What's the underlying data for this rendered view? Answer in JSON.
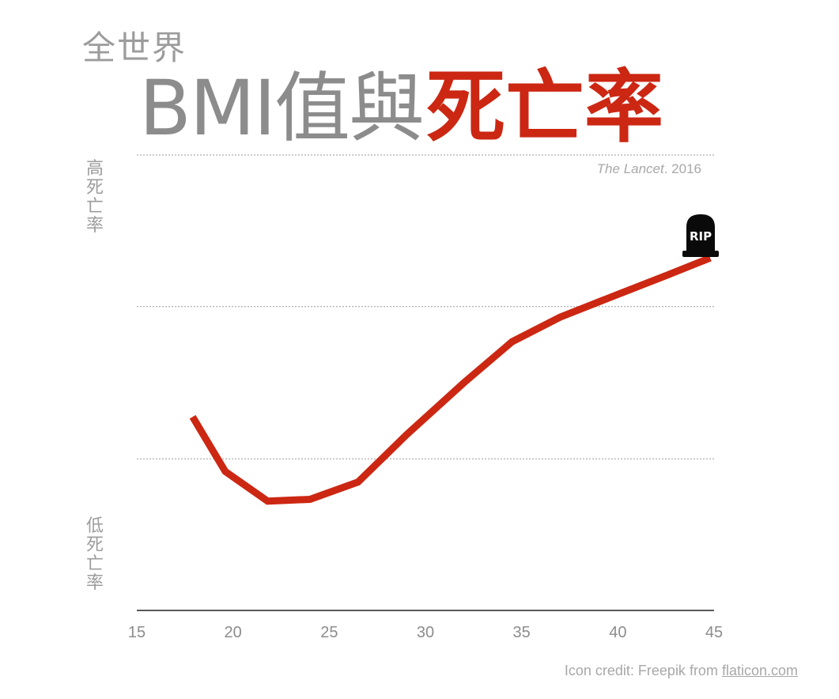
{
  "header": {
    "subtitle": "全世界",
    "title_part1": "BMI值與",
    "title_part2": "死亡率"
  },
  "source": {
    "journal": "The Lancet",
    "year": ". 2016"
  },
  "y_labels": {
    "top": [
      "高",
      "死",
      "亡",
      "率"
    ],
    "bottom": [
      "低",
      "死",
      "亡",
      "率"
    ]
  },
  "credit": {
    "text": "Icon credit: Freepik from ",
    "link": "flaticon.com"
  },
  "icon": {
    "name": "tombstone-icon",
    "text": "RIP"
  },
  "chart_data": {
    "type": "line",
    "title": "BMI值與死亡率",
    "xlabel": "",
    "ylabel": "",
    "xlim": [
      15,
      45
    ],
    "ylim": [
      0,
      100
    ],
    "y_axis_note": "Unit-less y scale: 0 = top gridline, 100 = baseline",
    "x_ticks": [
      15,
      20,
      25,
      30,
      35,
      40,
      45
    ],
    "gridlines": [
      0,
      33.3,
      66.7
    ],
    "grid": true,
    "line_color": "#cc2713",
    "series": [
      {
        "x": [
          17.9,
          19.6,
          21.8,
          24.0,
          26.5,
          29.0,
          32.0,
          34.5,
          37.0,
          40.0,
          42.5,
          44.8
        ],
        "y": [
          57.5,
          69.5,
          76.0,
          75.6,
          71.8,
          61.5,
          50.0,
          41.0,
          35.6,
          30.6,
          26.5,
          22.6
        ]
      }
    ]
  }
}
